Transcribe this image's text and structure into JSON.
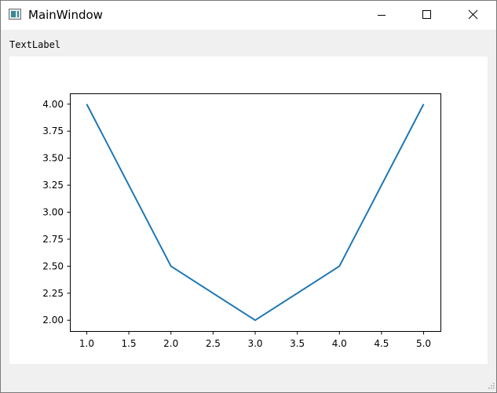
{
  "window": {
    "title": "MainWindow",
    "icon": "qt-window-icon",
    "controls": {
      "minimize": "minimize-icon",
      "maximize": "maximize-icon",
      "close": "close-icon"
    }
  },
  "content": {
    "text_label": "TextLabel"
  },
  "chart_data": {
    "type": "line",
    "x": [
      1.0,
      2.0,
      3.0,
      4.0,
      5.0
    ],
    "series": [
      {
        "values": [
          4.0,
          2.5,
          2.0,
          2.5,
          4.0
        ],
        "color": "#1f77b4"
      }
    ],
    "xlim": [
      0.8,
      5.2
    ],
    "ylim": [
      1.9,
      4.1
    ],
    "xticks": [
      "1.0",
      "1.5",
      "2.0",
      "2.5",
      "3.0",
      "3.5",
      "4.0",
      "4.5",
      "5.0"
    ],
    "yticks": [
      "2.00",
      "2.25",
      "2.50",
      "2.75",
      "3.00",
      "3.25",
      "3.50",
      "3.75",
      "4.00"
    ],
    "grid": false,
    "title": "",
    "xlabel": "",
    "ylabel": ""
  }
}
